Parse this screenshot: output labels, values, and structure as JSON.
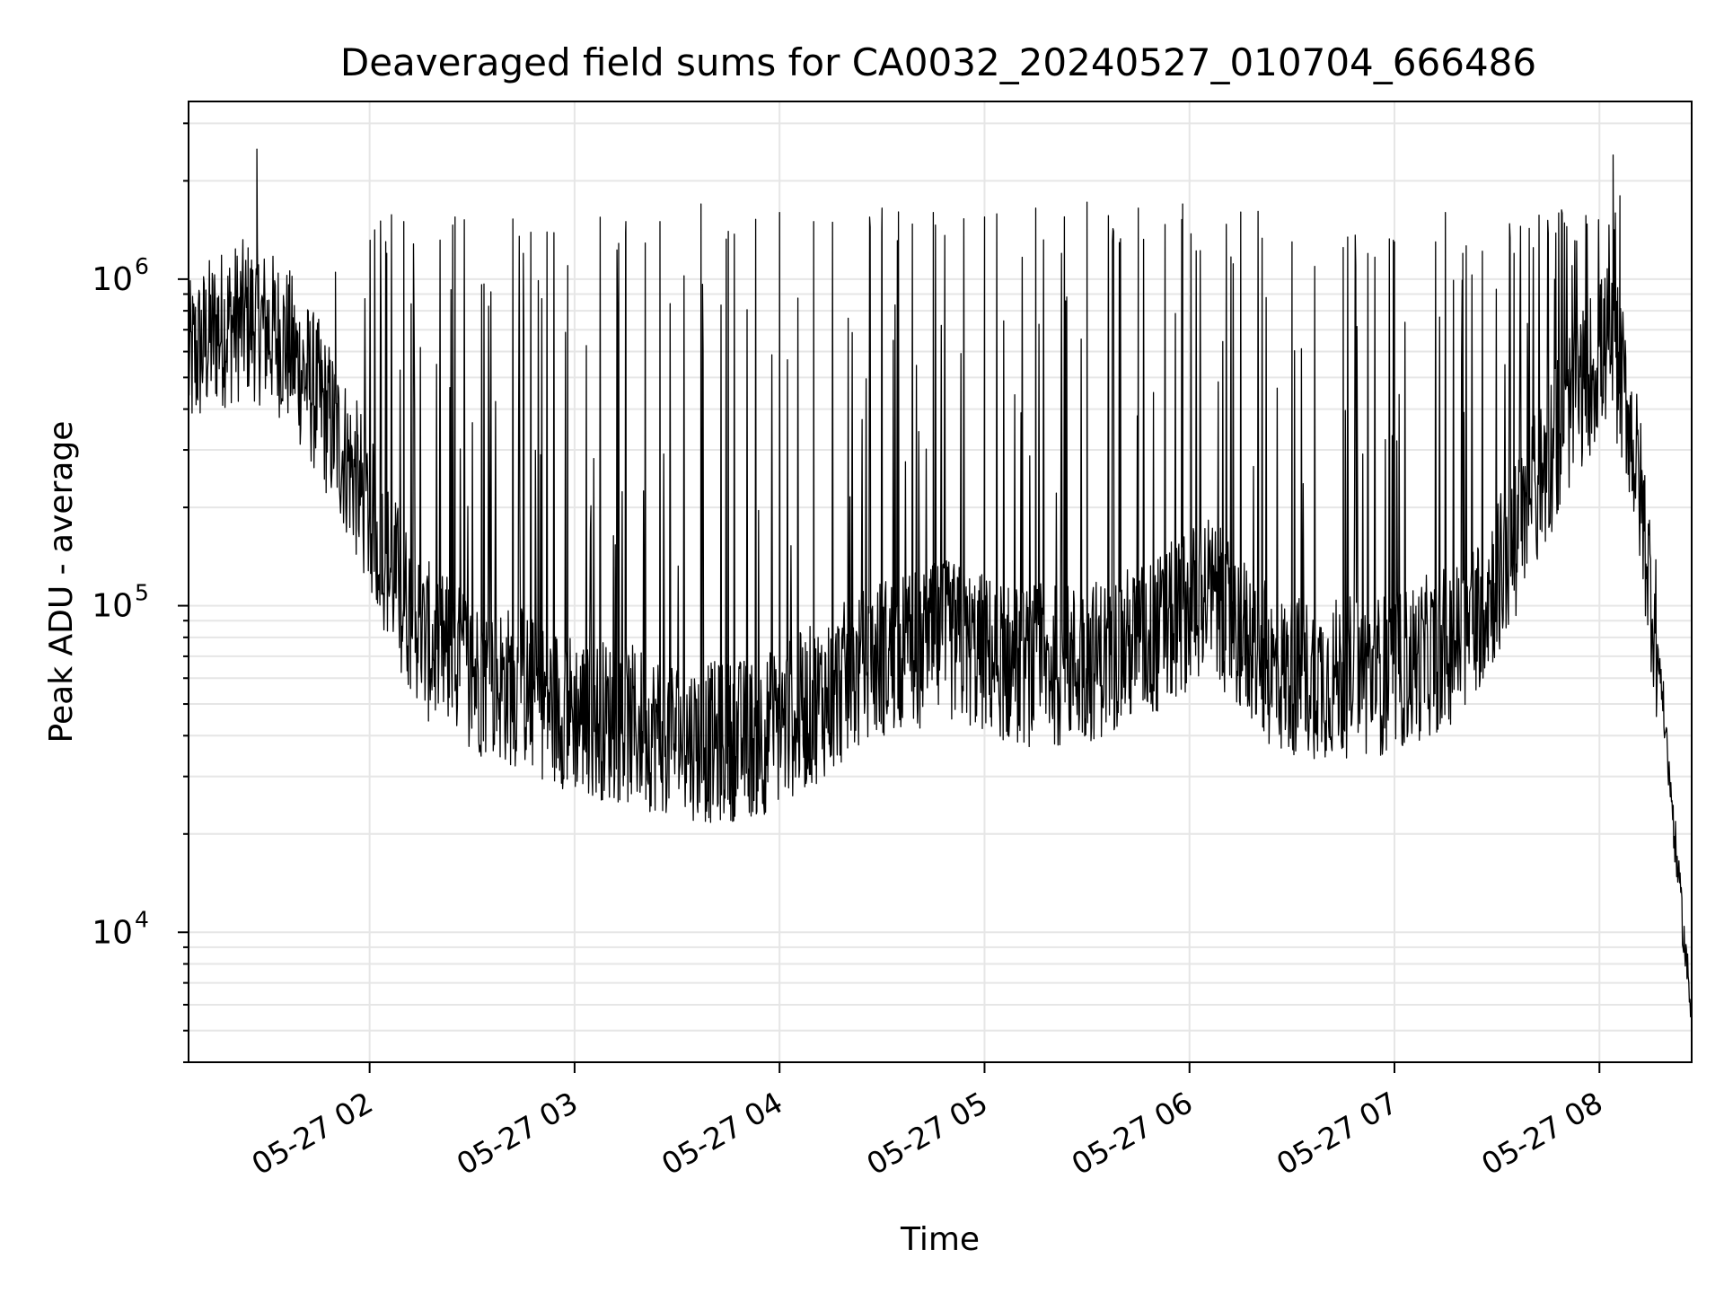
{
  "chart_data": {
    "type": "line",
    "title": "Deaveraged field sums for CA0032_20240527_010704_666486",
    "xlabel": "Time",
    "ylabel": "Peak ADU - average",
    "yscale": "log",
    "xlim": [
      "2024-05-27 01:07",
      "2024-05-27 08:27"
    ],
    "ylim": [
      4000,
      3500000
    ],
    "grid": true,
    "xticks": [
      {
        "t": "2024-05-27 02:00",
        "label": "05-27 02"
      },
      {
        "t": "2024-05-27 03:00",
        "label": "05-27 03"
      },
      {
        "t": "2024-05-27 04:00",
        "label": "05-27 04"
      },
      {
        "t": "2024-05-27 05:00",
        "label": "05-27 05"
      },
      {
        "t": "2024-05-27 06:00",
        "label": "05-27 06"
      },
      {
        "t": "2024-05-27 07:00",
        "label": "05-27 07"
      },
      {
        "t": "2024-05-27 08:00",
        "label": "05-27 08"
      }
    ],
    "yticks": [
      {
        "v": 10000,
        "label": "10",
        "exp": "4"
      },
      {
        "v": 100000,
        "label": "10",
        "exp": "5"
      },
      {
        "v": 1000000,
        "label": "10",
        "exp": "6"
      }
    ],
    "series": [
      {
        "color": "#000000",
        "baseline": [
          [
            "2024-05-27 01:07",
            550000
          ],
          [
            "2024-05-27 01:15",
            700000
          ],
          [
            "2024-05-27 01:25",
            760000
          ],
          [
            "2024-05-27 01:35",
            650000
          ],
          [
            "2024-05-27 01:45",
            430000
          ],
          [
            "2024-05-27 01:55",
            260000
          ],
          [
            "2024-05-27 02:05",
            140000
          ],
          [
            "2024-05-27 02:15",
            80000
          ],
          [
            "2024-05-27 02:30",
            62000
          ],
          [
            "2024-05-27 02:45",
            55000
          ],
          [
            "2024-05-27 03:00",
            47000
          ],
          [
            "2024-05-27 03:20",
            42000
          ],
          [
            "2024-05-27 03:40",
            38000
          ],
          [
            "2024-05-27 03:55",
            40000
          ],
          [
            "2024-05-27 04:10",
            50000
          ],
          [
            "2024-05-27 04:30",
            70000
          ],
          [
            "2024-05-27 04:50",
            78000
          ],
          [
            "2024-05-27 05:10",
            65000
          ],
          [
            "2024-05-27 05:30",
            67000
          ],
          [
            "2024-05-27 05:50",
            80000
          ],
          [
            "2024-05-27 06:05",
            110000
          ],
          [
            "2024-05-27 06:15",
            82000
          ],
          [
            "2024-05-27 06:25",
            62000
          ],
          [
            "2024-05-27 06:40",
            60000
          ],
          [
            "2024-05-27 07:00",
            62000
          ],
          [
            "2024-05-27 07:20",
            80000
          ],
          [
            "2024-05-27 07:35",
            150000
          ],
          [
            "2024-05-27 07:50",
            380000
          ],
          [
            "2024-05-27 08:03",
            650000
          ],
          [
            "2024-05-27 08:08",
            420000
          ],
          [
            "2024-05-27 08:12",
            220000
          ],
          [
            "2024-05-27 08:18",
            60000
          ],
          [
            "2024-05-27 08:23",
            15000
          ],
          [
            "2024-05-27 08:27",
            5500
          ]
        ],
        "spikes": [
          [
            "2024-05-27 01:27",
            2500000
          ],
          [
            "2024-05-27 01:50",
            1050000
          ],
          [
            "2024-05-27 02:05",
            1200000
          ],
          [
            "2024-05-27 02:10",
            1500000
          ],
          [
            "2024-05-27 02:25",
            1550000
          ],
          [
            "2024-05-27 02:45",
            1200000
          ],
          [
            "2024-05-27 02:58",
            1100000
          ],
          [
            "2024-05-27 03:15",
            1500000
          ],
          [
            "2024-05-27 03:25",
            1500000
          ],
          [
            "2024-05-27 03:37",
            1700000
          ],
          [
            "2024-05-27 03:45",
            1400000
          ],
          [
            "2024-05-27 04:00",
            1600000
          ],
          [
            "2024-05-27 04:10",
            1500000
          ],
          [
            "2024-05-27 04:30",
            1650000
          ],
          [
            "2024-05-27 04:45",
            1600000
          ],
          [
            "2024-05-27 05:00",
            1550000
          ],
          [
            "2024-05-27 05:15",
            1650000
          ],
          [
            "2024-05-27 05:30",
            1720000
          ],
          [
            "2024-05-27 05:45",
            1650000
          ],
          [
            "2024-05-27 05:58",
            1700000
          ],
          [
            "2024-05-27 06:15",
            1350000
          ],
          [
            "2024-05-27 06:30",
            1300000
          ],
          [
            "2024-05-27 06:45",
            1250000
          ],
          [
            "2024-05-27 07:00",
            1300000
          ],
          [
            "2024-05-27 07:20",
            1200000
          ],
          [
            "2024-05-27 07:35",
            1200000
          ],
          [
            "2024-05-27 07:52",
            1100000
          ],
          [
            "2024-05-27 08:04",
            2400000
          ],
          [
            "2024-05-27 08:06",
            1800000
          ]
        ]
      }
    ]
  }
}
